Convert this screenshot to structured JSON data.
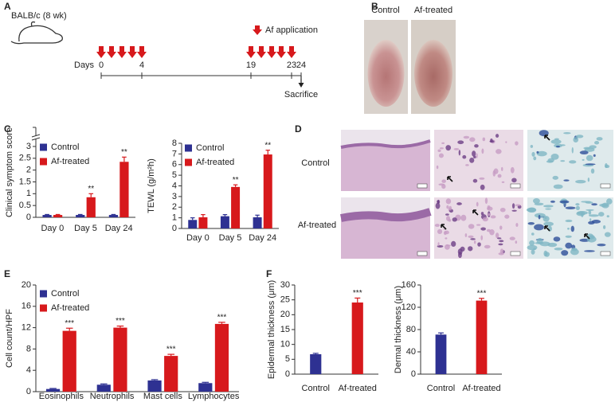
{
  "panel_a": {
    "label": "A",
    "mouse": "BALB/c (8 wk)",
    "legend": "Af application",
    "days_label": "Days",
    "days": [
      0,
      4,
      19,
      23,
      24
    ],
    "end": "Sacrifice"
  },
  "panel_b": {
    "label": "B",
    "captions": [
      "Control",
      "Af-treated"
    ]
  },
  "panel_c": {
    "label": "C"
  },
  "panel_d": {
    "label": "D",
    "rows": [
      "Control",
      "Af-treated"
    ]
  },
  "panel_e": {
    "label": "E"
  },
  "panel_f": {
    "label": "F"
  },
  "chart_data": [
    {
      "type": "bar",
      "ylabel": "Clinical symptom score",
      "categories": [
        "Day 0",
        "Day 5",
        "Day 24"
      ],
      "series": [
        {
          "name": "Control",
          "color": "#2e3192",
          "values": [
            0.1,
            0.1,
            0.1
          ],
          "errors": [
            0.02,
            0.02,
            0.02
          ],
          "significance": [
            null,
            null,
            null
          ]
        },
        {
          "name": "Af-treated",
          "color": "#d7191c",
          "values": [
            0.1,
            0.85,
            2.35
          ],
          "errors": [
            0.02,
            0.15,
            0.2
          ],
          "significance": [
            null,
            "**",
            "**"
          ]
        }
      ],
      "ylim": [
        0,
        3
      ],
      "yticks": [
        0,
        0.5,
        1,
        1.5,
        2,
        2.5,
        3
      ],
      "axis_break": true,
      "legend": "upper left"
    },
    {
      "type": "bar",
      "ylabel": "TEWL (g/m²h)",
      "categories": [
        "Day 0",
        "Day 5",
        "Day 24"
      ],
      "series": [
        {
          "name": "Control",
          "color": "#2e3192",
          "values": [
            0.8,
            1.15,
            1.05
          ],
          "errors": [
            0.2,
            0.15,
            0.2
          ],
          "significance": [
            null,
            null,
            null
          ]
        },
        {
          "name": "Af-treated",
          "color": "#d7191c",
          "values": [
            1.05,
            3.9,
            6.95
          ],
          "errors": [
            0.25,
            0.2,
            0.4
          ],
          "significance": [
            null,
            "**",
            "**"
          ]
        }
      ],
      "ylim": [
        0,
        8
      ],
      "yticks": [
        0,
        1,
        2,
        3,
        4,
        5,
        6,
        7,
        8
      ],
      "legend": "upper left"
    },
    {
      "type": "bar",
      "ylabel": "Cell count/HPF",
      "categories": [
        "Eosinophils",
        "Neutrophils",
        "Mast cells",
        "Lymphocytes"
      ],
      "series": [
        {
          "name": "Control",
          "color": "#2e3192",
          "values": [
            0.5,
            1.3,
            2.1,
            1.6
          ],
          "errors": [
            0.1,
            0.15,
            0.15,
            0.15
          ],
          "significance": [
            null,
            null,
            null,
            null
          ]
        },
        {
          "name": "Af-treated",
          "color": "#d7191c",
          "values": [
            11.4,
            12.0,
            6.7,
            12.7
          ],
          "errors": [
            0.5,
            0.3,
            0.3,
            0.3
          ],
          "significance": [
            "***",
            "***",
            "***",
            "***"
          ]
        }
      ],
      "ylim": [
        0,
        20
      ],
      "yticks": [
        0,
        4,
        8,
        12,
        16,
        20
      ],
      "legend": "upper left"
    },
    {
      "type": "bar",
      "ylabel": "Epidermal thickness (μm)",
      "categories": [
        "Control",
        "Af-treated"
      ],
      "values": [
        6.7,
        24.1
      ],
      "errors": [
        0.3,
        1.5
      ],
      "colors": [
        "#2e3192",
        "#d7191c"
      ],
      "significance": [
        null,
        "***"
      ],
      "ylim": [
        0,
        30
      ],
      "yticks": [
        0,
        5,
        10,
        15,
        20,
        25,
        30
      ]
    },
    {
      "type": "bar",
      "ylabel": "Dermal thickness (μm)",
      "categories": [
        "Control",
        "Af-treated"
      ],
      "values": [
        71,
        132
      ],
      "errors": [
        3,
        4
      ],
      "colors": [
        "#2e3192",
        "#d7191c"
      ],
      "significance": [
        null,
        "***"
      ],
      "ylim": [
        0,
        160
      ],
      "yticks": [
        0,
        40,
        80,
        120,
        160
      ]
    }
  ]
}
